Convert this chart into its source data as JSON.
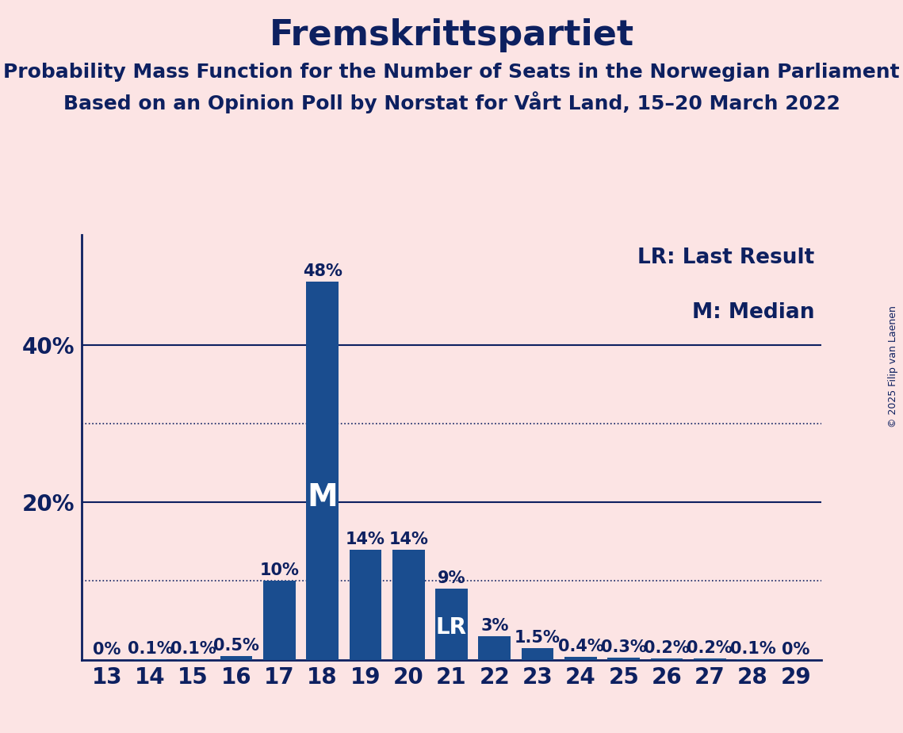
{
  "title": "Fremskrittspartiet",
  "subtitle1": "Probability Mass Function for the Number of Seats in the Norwegian Parliament",
  "subtitle2": "Based on an Opinion Poll by Norstat for Vårt Land, 15–20 March 2022",
  "copyright": "© 2025 Filip van Laenen",
  "categories": [
    13,
    14,
    15,
    16,
    17,
    18,
    19,
    20,
    21,
    22,
    23,
    24,
    25,
    26,
    27,
    28,
    29
  ],
  "values": [
    0.0,
    0.1,
    0.1,
    0.5,
    10.0,
    48.0,
    14.0,
    14.0,
    9.0,
    3.0,
    1.5,
    0.4,
    0.3,
    0.2,
    0.2,
    0.1,
    0.0
  ],
  "labels": [
    "0%",
    "0.1%",
    "0.1%",
    "0.5%",
    "10%",
    "48%",
    "14%",
    "14%",
    "9%",
    "3%",
    "1.5%",
    "0.4%",
    "0.3%",
    "0.2%",
    "0.2%",
    "0.1%",
    "0%"
  ],
  "bar_color": "#1a4d8f",
  "background_color": "#fce4e4",
  "text_color": "#0d2060",
  "median_bar": 18,
  "lr_bar": 21,
  "legend_lr": "LR: Last Result",
  "legend_m": "M: Median",
  "solid_yticks": [
    20,
    40
  ],
  "dotted_yticks": [
    10,
    30
  ],
  "title_fontsize": 32,
  "subtitle_fontsize": 18,
  "tick_fontsize": 20,
  "bar_label_fontsize": 15,
  "legend_fontsize": 19,
  "copyright_fontsize": 9,
  "ylim": 54,
  "bar_width": 0.75
}
